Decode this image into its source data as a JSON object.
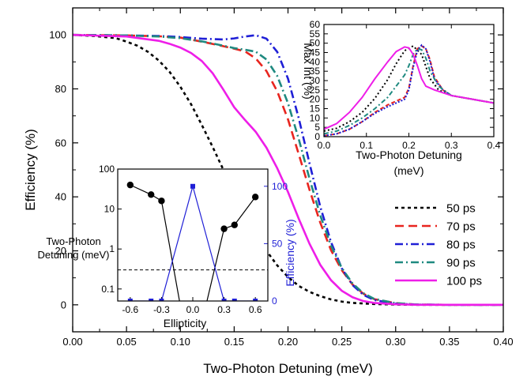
{
  "chart_data": [
    {
      "id": "main",
      "type": "line",
      "xlabel": "Two-Photon Detuning (meV)",
      "ylabel": "Efficiency (%)",
      "xlim": [
        0,
        0.4
      ],
      "ylim": [
        -10,
        110
      ],
      "xticks": [
        "0.00",
        "0.05",
        "0.10",
        "0.15",
        "0.20",
        "0.25",
        "0.30",
        "0.35",
        "0.40"
      ],
      "yticks": [
        "0",
        "20",
        "40",
        "60",
        "80",
        "100"
      ],
      "legend_position": "center-right",
      "series": [
        {
          "name": "50 ps",
          "color": "#000000",
          "dash": "4,4",
          "x": [
            0,
            0.02,
            0.04,
            0.05,
            0.06,
            0.07,
            0.08,
            0.09,
            0.1,
            0.11,
            0.12,
            0.13,
            0.14,
            0.15,
            0.16,
            0.17,
            0.18,
            0.19,
            0.2,
            0.21,
            0.22,
            0.23,
            0.24,
            0.25,
            0.26,
            0.28,
            0.3,
            0.32,
            0.35,
            0.4
          ],
          "y": [
            100,
            99.6,
            98.8,
            97.5,
            96,
            93.7,
            90.5,
            86.3,
            80.8,
            74.3,
            66.6,
            58.5,
            50,
            41.8,
            33.8,
            26.5,
            20,
            14.6,
            10.3,
            7,
            4.8,
            3.2,
            2,
            1.2,
            0.7,
            0.3,
            0.1,
            0,
            0,
            0
          ]
        },
        {
          "name": "70 ps",
          "color": "#e8251f",
          "dash": "11,6",
          "x": [
            0,
            0.05,
            0.08,
            0.1,
            0.12,
            0.14,
            0.15,
            0.16,
            0.17,
            0.18,
            0.19,
            0.2,
            0.21,
            0.22,
            0.23,
            0.24,
            0.25,
            0.26,
            0.27,
            0.28,
            0.3,
            0.32,
            0.35,
            0.4
          ],
          "y": [
            100,
            99.8,
            99.5,
            99,
            97.5,
            95.8,
            94.9,
            93.9,
            91.3,
            86.6,
            79.1,
            68.7,
            55.8,
            42.6,
            30.4,
            20.2,
            12.8,
            7.5,
            4.1,
            2.1,
            0.6,
            0.1,
            0,
            0
          ]
        },
        {
          "name": "80 ps",
          "color": "#1f1fd6",
          "dash": "10,4,2,4",
          "x": [
            0,
            0.05,
            0.08,
            0.1,
            0.12,
            0.14,
            0.15,
            0.16,
            0.17,
            0.18,
            0.19,
            0.2,
            0.21,
            0.22,
            0.23,
            0.24,
            0.25,
            0.26,
            0.27,
            0.28,
            0.3,
            0.32,
            0.35,
            0.4
          ],
          "y": [
            100,
            99.8,
            99.6,
            99.2,
            98.6,
            98.3,
            98.7,
            99.4,
            99.9,
            98.6,
            93.7,
            83.8,
            69.1,
            52.4,
            36.3,
            23.2,
            13.5,
            7.3,
            3.7,
            1.8,
            0.4,
            0.1,
            0,
            0
          ]
        },
        {
          "name": "90 ps",
          "color": "#1f8a80",
          "dash": "10,4,2,4",
          "x": [
            0,
            0.05,
            0.08,
            0.1,
            0.12,
            0.14,
            0.15,
            0.16,
            0.17,
            0.18,
            0.19,
            0.2,
            0.21,
            0.22,
            0.23,
            0.24,
            0.25,
            0.26,
            0.27,
            0.28,
            0.3,
            0.32,
            0.35,
            0.4
          ],
          "y": [
            100,
            99.8,
            99.4,
            98.8,
            97.6,
            96,
            95.1,
            94.5,
            93.8,
            90.9,
            84.8,
            74.7,
            61.4,
            46.7,
            33.1,
            21.9,
            13.6,
            7.9,
            4.3,
            2.2,
            0.6,
            0.1,
            0,
            0
          ]
        },
        {
          "name": "100 ps",
          "color": "#ee1ee8",
          "dash": "",
          "x": [
            0,
            0.05,
            0.08,
            0.09,
            0.1,
            0.11,
            0.12,
            0.13,
            0.14,
            0.15,
            0.16,
            0.17,
            0.18,
            0.19,
            0.2,
            0.21,
            0.22,
            0.23,
            0.24,
            0.25,
            0.26,
            0.27,
            0.28,
            0.3,
            0.32,
            0.35,
            0.4
          ],
          "y": [
            100,
            99.4,
            97.8,
            96.7,
            95.3,
            93.3,
            90.3,
            85.8,
            79.7,
            73.2,
            68.5,
            64.1,
            58.2,
            50.6,
            41.8,
            31.9,
            22.6,
            14.8,
            9.1,
            5.2,
            2.8,
            1.4,
            0.7,
            0.2,
            0,
            0,
            0
          ]
        }
      ]
    },
    {
      "id": "inset-top-right",
      "type": "line",
      "xlabel": "Two-Photon Detuning\n(meV)",
      "ylabel": "Max Int (%)",
      "xlim": [
        0,
        0.4
      ],
      "ylim": [
        0,
        60
      ],
      "xticks": [
        "0.0",
        "0.1",
        "0.2",
        "0.3",
        "0.4"
      ],
      "yticks": [
        "0",
        "5",
        "10",
        "15",
        "20",
        "25",
        "30",
        "35",
        "40",
        "45",
        "50",
        "55",
        "60"
      ],
      "series": [
        {
          "name": "50 ps",
          "color": "#000000",
          "dash": "2,3",
          "x": [
            0,
            0.03,
            0.06,
            0.09,
            0.12,
            0.15,
            0.17,
            0.19,
            0.21,
            0.23,
            0.25,
            0.27,
            0.3,
            0.35,
            0.4
          ],
          "y": [
            3,
            4.5,
            8,
            13,
            20.5,
            30.5,
            39,
            46,
            48.5,
            44,
            31,
            25,
            22,
            20,
            18
          ]
        },
        {
          "name": "70 ps",
          "color": "#e8251f",
          "dash": "5,3",
          "x": [
            0,
            0.03,
            0.06,
            0.09,
            0.12,
            0.15,
            0.17,
            0.19,
            0.2,
            0.21,
            0.22,
            0.23,
            0.24,
            0.25,
            0.26,
            0.28,
            0.3,
            0.35,
            0.4
          ],
          "y": [
            0.5,
            1.5,
            4,
            8,
            13,
            17,
            19,
            21,
            26,
            38,
            47,
            48.5,
            47,
            41,
            32,
            25,
            22,
            20,
            18
          ]
        },
        {
          "name": "80 ps",
          "color": "#1f1fd6",
          "dash": "2,2",
          "x": [
            0,
            0.03,
            0.06,
            0.09,
            0.12,
            0.15,
            0.17,
            0.19,
            0.2,
            0.21,
            0.22,
            0.23,
            0.24,
            0.25,
            0.26,
            0.28,
            0.3,
            0.35,
            0.4
          ],
          "y": [
            0.5,
            1.5,
            4,
            8,
            12.5,
            16,
            18,
            20,
            25,
            37,
            46,
            49,
            47,
            40,
            31,
            25,
            22,
            20,
            18
          ]
        },
        {
          "name": "90 ps",
          "color": "#1f8a80",
          "dash": "6,3,2,3",
          "x": [
            0,
            0.03,
            0.06,
            0.09,
            0.12,
            0.15,
            0.17,
            0.19,
            0.2,
            0.21,
            0.22,
            0.23,
            0.24,
            0.25,
            0.27,
            0.3,
            0.35,
            0.4
          ],
          "y": [
            1.5,
            3,
            6,
            10,
            15,
            21,
            27,
            33,
            38,
            44,
            47,
            46.5,
            42,
            35,
            27,
            22,
            20,
            18
          ]
        },
        {
          "name": "100 ps",
          "color": "#ee1ee8",
          "dash": "",
          "x": [
            0,
            0.03,
            0.06,
            0.09,
            0.12,
            0.15,
            0.17,
            0.19,
            0.2,
            0.21,
            0.22,
            0.23,
            0.24,
            0.26,
            0.3,
            0.35,
            0.4
          ],
          "y": [
            4,
            7,
            13,
            21,
            31,
            40,
            45.5,
            48,
            47.5,
            44,
            38,
            31,
            27,
            25,
            22,
            20,
            18
          ]
        }
      ]
    },
    {
      "id": "inset-bottom-left",
      "type": "line",
      "xlabel": "Ellipticity",
      "ylabel": "Two-Photon\nDetuning (meV)",
      "ylabel_right": "Efficiency (%)",
      "xlim": [
        -0.72,
        0.72
      ],
      "xticks": [
        "-0.6",
        "-0.3",
        "0.0",
        "0.3",
        "0.6"
      ],
      "y_left_scale": "log",
      "y_left_lim": [
        0.05,
        100
      ],
      "y_left_ticks": [
        "0.1",
        "1",
        "10",
        "100"
      ],
      "y_right_lim": [
        0,
        115
      ],
      "y_right_ticks": [
        "0",
        "50",
        "100"
      ],
      "reference_line_y": 0.3,
      "detuning_series": {
        "color": "#000000",
        "x": [
          -0.6,
          -0.4,
          -0.3,
          -0.1,
          0.1,
          0.3,
          0.4,
          0.6
        ],
        "y": [
          40,
          23,
          16,
          0.02,
          0.02,
          3.2,
          4,
          20
        ],
        "marked_x": [
          -0.6,
          -0.4,
          -0.3,
          0.3,
          0.4,
          0.6
        ]
      },
      "efficiency_series": {
        "color": "#1f1fd6",
        "x": [
          -0.6,
          -0.4,
          -0.3,
          0.0,
          0.3,
          0.4,
          0.6
        ],
        "y": [
          0,
          0,
          0,
          100,
          0,
          0,
          0
        ]
      }
    }
  ]
}
